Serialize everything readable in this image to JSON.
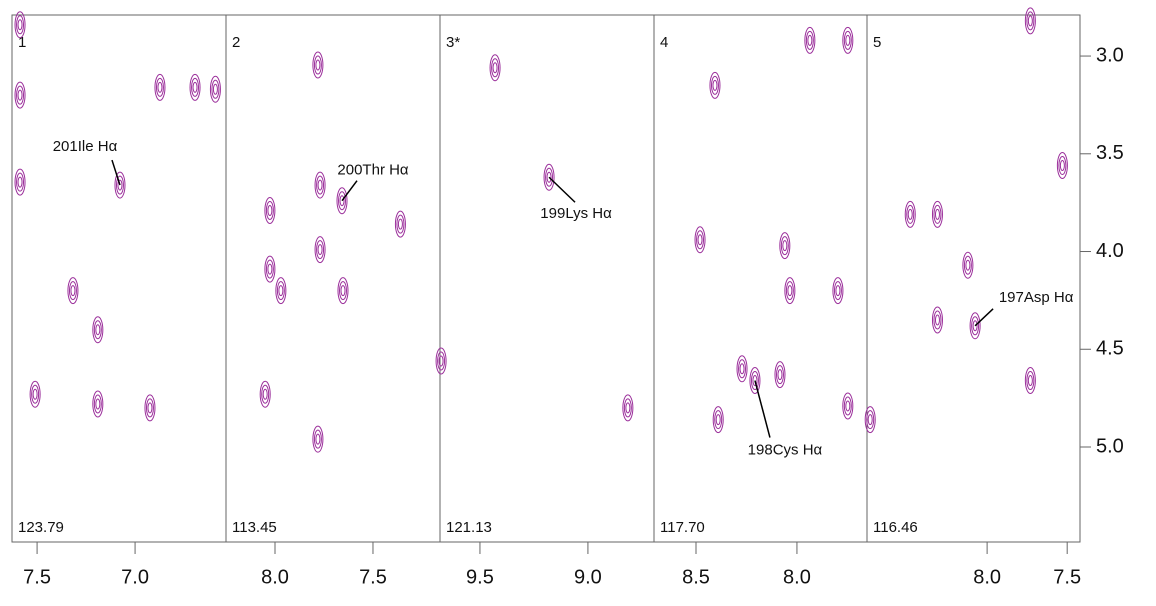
{
  "chart_data": {
    "type": "contour-strips",
    "color": "#9b2f9b",
    "ylim": [
      2.79,
      5.486
    ],
    "yticks": [
      {
        "value": 3,
        "label": "3.0"
      },
      {
        "value": 3.5,
        "label": "3.5"
      },
      {
        "value": 4,
        "label": "4.0"
      },
      {
        "value": 4.5,
        "label": "4.5"
      },
      {
        "value": 5,
        "label": "5.0"
      }
    ],
    "panels": [
      {
        "label": "1",
        "plane": "123.79",
        "xlim": [
          7.628,
          6.536
        ],
        "xticks": [
          {
            "value": 7.5,
            "label": "7.5"
          },
          {
            "value": 7,
            "label": "7.0"
          }
        ],
        "peaks": {
          "x": [
            7.077,
            7.587,
            7.587,
            7.51,
            7.19,
            7.317,
            7.19,
            6.694,
            6.59,
            6.873,
            6.924,
            7.587
          ],
          "y": [
            3.66,
            3.645,
            3.2,
            4.73,
            4.78,
            4.2,
            4.4,
            3.16,
            3.17,
            3.16,
            4.8,
            2.84
          ]
        },
        "annotations": [
          {
            "text": "201Ile Hα",
            "x": 7.077,
            "y": 3.66
          }
        ]
      },
      {
        "label": "2",
        "plane": "113.45",
        "xlim": [
          8.25,
          7.158
        ],
        "xticks": [
          {
            "value": 8,
            "label": "8.0"
          },
          7.5
        ],
        "peaks": {
          "x": [
            7.781,
            8.026,
            8.026,
            7.97,
            7.77,
            7.77,
            7.658,
            7.781,
            8.05,
            7.653,
            7.36
          ],
          "y": [
            3.046,
            3.79,
            4.09,
            4.2,
            3.66,
            3.99,
            3.74,
            4.96,
            4.73,
            4.2,
            3.86
          ]
        },
        "annotations": [
          {
            "text": "200Thr Hα",
            "x": 7.658,
            "y": 3.74
          }
        ]
      },
      {
        "label": "3*",
        "plane": "121.13",
        "xlim": [
          9.685,
          8.694
        ],
        "xticks": [
          9.5,
          {
            "value": 9,
            "label": "9.0"
          }
        ],
        "peaks": {
          "x": [
            9.43,
            9.18,
            8.815,
            9.68
          ],
          "y": [
            3.06,
            3.62,
            4.8,
            4.56
          ]
        },
        "annotations": [
          {
            "text": "199Lys Hα",
            "x": 9.18,
            "y": 3.62
          }
        ]
      },
      {
        "label": "4",
        "plane": "117.70",
        "xlim": [
          8.708,
          7.653
        ],
        "xticks": [
          8.5,
          {
            "value": 8,
            "label": "8.0"
          }
        ],
        "peaks": {
          "x": [
            8.035,
            8.06,
            8.272,
            8.208,
            8.39,
            7.748,
            7.797,
            7.748,
            8.48,
            8.406,
            7.936,
            8.084
          ],
          "y": [
            4.2,
            3.97,
            4.6,
            4.66,
            4.86,
            2.92,
            4.2,
            4.79,
            3.94,
            3.15,
            2.92,
            4.63
          ]
        },
        "annotations": [
          {
            "text": "198Cys Hα",
            "x": 8.208,
            "y": 4.66
          }
        ]
      },
      {
        "label": "5",
        "plane": "116.46",
        "xlim": [
          8.75,
          7.42
        ],
        "xticks": [
          {
            "value": 8,
            "label": "8.0"
          },
          7.5
        ],
        "peaks": {
          "x": [
            8.31,
            8.31,
            8.12,
            8.075,
            7.53,
            8.48,
            7.73,
            7.73,
            8.73
          ],
          "y": [
            3.81,
            4.35,
            4.07,
            4.38,
            3.56,
            3.81,
            4.66,
            2.82,
            4.86
          ]
        },
        "annotations": [
          {
            "text": "197Asp Hα",
            "x": 8.075,
            "y": 4.38
          }
        ]
      }
    ]
  }
}
